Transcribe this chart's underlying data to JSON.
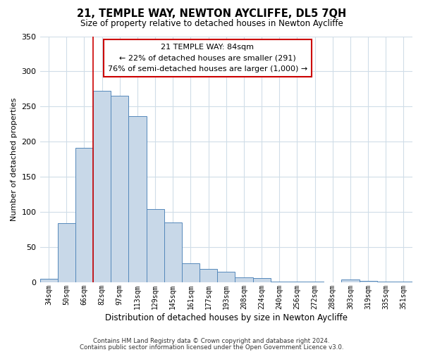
{
  "title": "21, TEMPLE WAY, NEWTON AYCLIFFE, DL5 7QH",
  "subtitle": "Size of property relative to detached houses in Newton Aycliffe",
  "xlabel": "Distribution of detached houses by size in Newton Aycliffe",
  "ylabel": "Number of detached properties",
  "footer_line1": "Contains HM Land Registry data © Crown copyright and database right 2024.",
  "footer_line2": "Contains public sector information licensed under the Open Government Licence v3.0.",
  "bar_labels": [
    "34sqm",
    "50sqm",
    "66sqm",
    "82sqm",
    "97sqm",
    "113sqm",
    "129sqm",
    "145sqm",
    "161sqm",
    "177sqm",
    "193sqm",
    "208sqm",
    "224sqm",
    "240sqm",
    "256sqm",
    "272sqm",
    "288sqm",
    "303sqm",
    "319sqm",
    "335sqm",
    "351sqm"
  ],
  "bar_values": [
    5,
    84,
    191,
    272,
    265,
    236,
    104,
    85,
    27,
    19,
    15,
    7,
    6,
    1,
    1,
    1,
    0,
    4,
    2,
    1,
    1
  ],
  "bar_color": "#c8d8e8",
  "bar_edge_color": "#5588bb",
  "ylim": [
    0,
    350
  ],
  "yticks": [
    0,
    50,
    100,
    150,
    200,
    250,
    300,
    350
  ],
  "vline_x_index": 3,
  "vline_color": "#cc0000",
  "annotation_title": "21 TEMPLE WAY: 84sqm",
  "annotation_line1": "← 22% of detached houses are smaller (291)",
  "annotation_line2": "76% of semi-detached houses are larger (1,000) →",
  "annotation_box_color": "#ffffff",
  "annotation_box_edge": "#cc0000",
  "background_color": "#ffffff",
  "grid_color": "#d0dde8"
}
